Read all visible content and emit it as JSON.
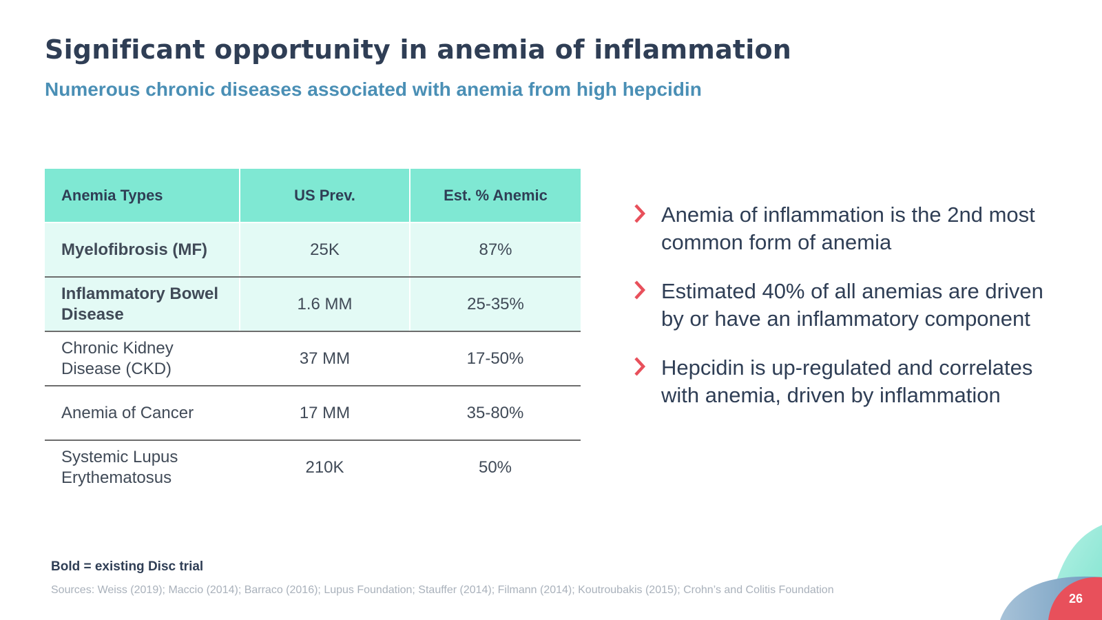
{
  "slide": {
    "title": "Significant opportunity in anemia of inflammation",
    "subtitle": "Numerous chronic diseases associated with anemia from high hepcidin",
    "page_number": "26"
  },
  "table": {
    "headers": [
      "Anemia Types",
      "US Prev.",
      "Est. % Anemic"
    ],
    "rows": [
      {
        "type": "Myelofibrosis (MF)",
        "prevalence": "25K",
        "anemic": "87%",
        "bold": true
      },
      {
        "type": "Inflammatory Bowel Disease",
        "prevalence": "1.6 MM",
        "anemic": "25-35%",
        "bold": true
      },
      {
        "type": "Chronic Kidney Disease (CKD)",
        "prevalence": "37 MM",
        "anemic": "17-50%",
        "bold": false
      },
      {
        "type": "Anemia of Cancer",
        "prevalence": "17 MM",
        "anemic": "35-80%",
        "bold": false
      },
      {
        "type": "Systemic Lupus Erythematosus",
        "prevalence": "210K",
        "anemic": "50%",
        "bold": false
      }
    ]
  },
  "bullets": [
    "Anemia of inflammation is the 2nd most common form of anemia",
    "Estimated 40% of all anemias are driven by or have an inflammatory component",
    "Hepcidin is up-regulated and correlates with anemia, driven by inflammation"
  ],
  "footer": {
    "note": "Bold = existing Disc trial",
    "sources": "Sources: Weiss (2019); Maccio (2014); Barraco (2016); Lupus Foundation; Stauffer (2014); Filmann (2014); Koutroubakis (2015); Crohn’s and Colitis Foundation"
  },
  "icons": {
    "bullet": "chevron-right-icon"
  },
  "colors": {
    "title": "#2f3e55",
    "subtitle": "#4a8fb5",
    "table_header": "#7fe8d3",
    "table_highlight": "#e3faf5",
    "accent_red": "#e8505b",
    "accent_teal": "#8ee8d6",
    "accent_blue": "#7aa3c4"
  }
}
